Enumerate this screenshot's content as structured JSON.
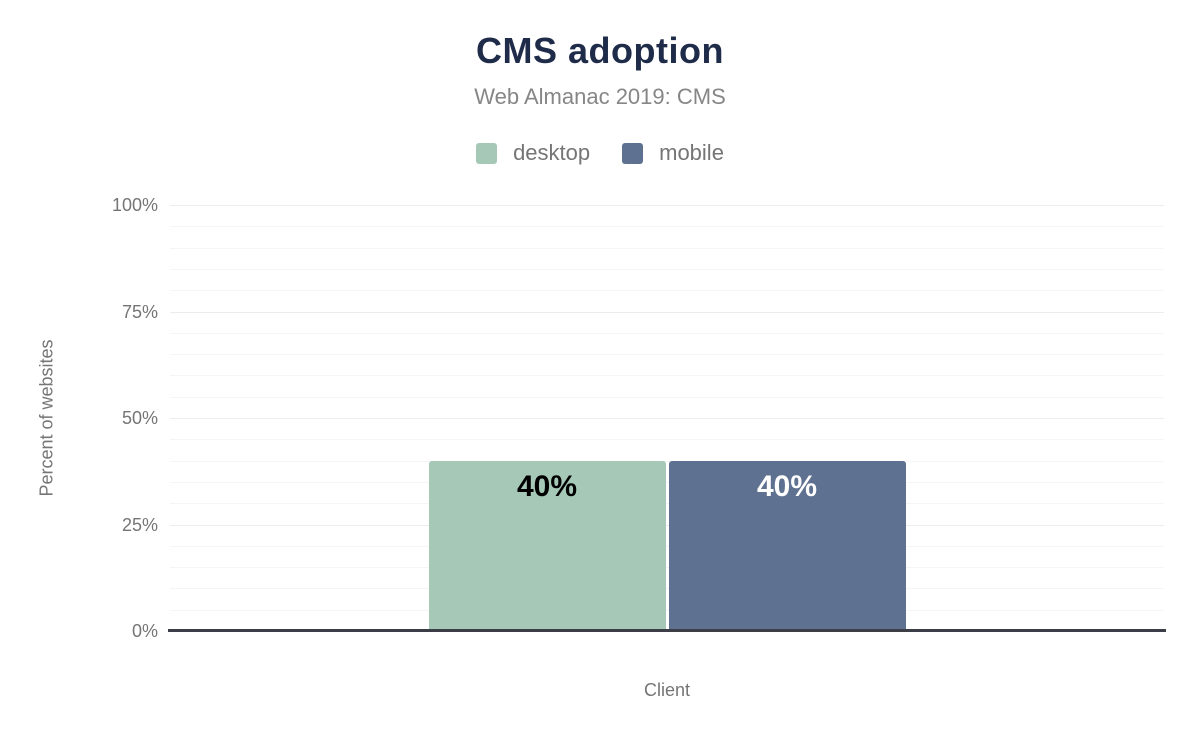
{
  "chart_data": {
    "type": "bar",
    "title": "CMS adoption",
    "subtitle": "Web Almanac 2019: CMS",
    "xlabel": "Client",
    "ylabel": "Percent of websites",
    "categories": [
      "Client"
    ],
    "series": [
      {
        "name": "desktop",
        "values": [
          40
        ],
        "value_labels": [
          "40%"
        ],
        "color": "#a6c8b7",
        "value_label_color": "#000000"
      },
      {
        "name": "mobile",
        "values": [
          40
        ],
        "value_labels": [
          "40%"
        ],
        "color": "#5e7190",
        "value_label_color": "#ffffff"
      }
    ],
    "ylim": [
      0,
      100
    ],
    "y_ticks": [
      {
        "value": 0,
        "label": "0%"
      },
      {
        "value": 25,
        "label": "25%"
      },
      {
        "value": 50,
        "label": "50%"
      },
      {
        "value": 75,
        "label": "75%"
      },
      {
        "value": 100,
        "label": "100%"
      }
    ],
    "y_minor_step": 5,
    "grid": true,
    "legend_position": "top"
  },
  "colors": {
    "background": "#ffffff",
    "title": "#1e2b49",
    "subtitle": "#868686",
    "axis_text": "#757575",
    "axis_line": "#3b3e46",
    "grid_major": "#ececec",
    "grid_minor": "#f5f5f5"
  }
}
